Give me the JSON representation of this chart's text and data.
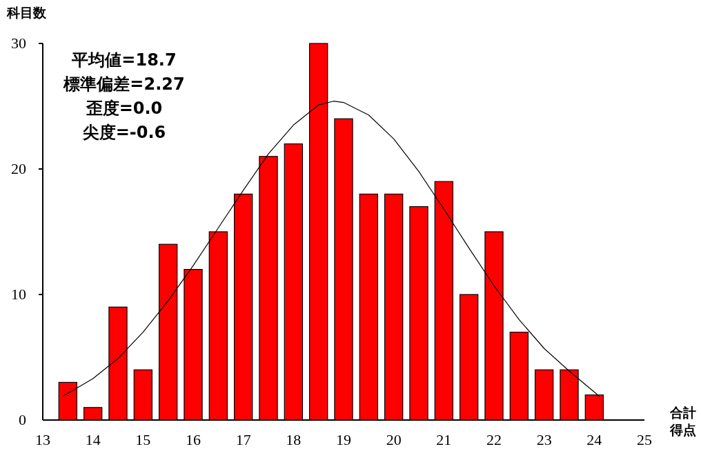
{
  "chart_data": {
    "type": "bar",
    "ylabel": "科目数",
    "xlabel": "合計得点",
    "x": [
      13.5,
      14,
      14.5,
      15,
      15.5,
      16,
      16.5,
      17,
      17.5,
      18,
      18.5,
      19,
      19.5,
      20,
      20.5,
      21,
      21.5,
      22,
      22.5,
      23,
      23.5,
      24
    ],
    "series": [
      {
        "color": "#ff0000",
        "values": [
          3,
          1,
          9,
          4,
          14,
          12,
          15,
          18,
          21,
          22,
          30,
          24,
          18,
          18,
          17,
          19,
          10,
          15,
          7,
          4,
          4,
          2
        ]
      },
      {
        "type": "line",
        "color": "#000000",
        "x": [
          13.4,
          14,
          14.5,
          15,
          15.5,
          16,
          16.5,
          17,
          17.5,
          18,
          18.5,
          18.8,
          19,
          19.5,
          20,
          20.5,
          21,
          21.5,
          22,
          22.5,
          23,
          23.5,
          24.1
        ],
        "values": [
          1.9,
          3.3,
          4.9,
          7.0,
          9.5,
          12.3,
          15.3,
          18.3,
          21.2,
          23.5,
          25.1,
          25.4,
          25.3,
          24.3,
          22.4,
          19.8,
          16.8,
          13.7,
          10.7,
          8.0,
          5.7,
          3.9,
          1.9
        ]
      }
    ],
    "annotations": [
      "平均値=18.7",
      "標準偏差=2.27",
      "歪度=0.0",
      "尖度=-0.6"
    ],
    "xlim": [
      13,
      25
    ],
    "xticks": [
      13,
      14,
      15,
      16,
      17,
      18,
      19,
      20,
      21,
      22,
      23,
      24,
      25
    ],
    "ylim": [
      0,
      30
    ],
    "yticks": [
      0,
      10,
      20,
      30
    ]
  }
}
